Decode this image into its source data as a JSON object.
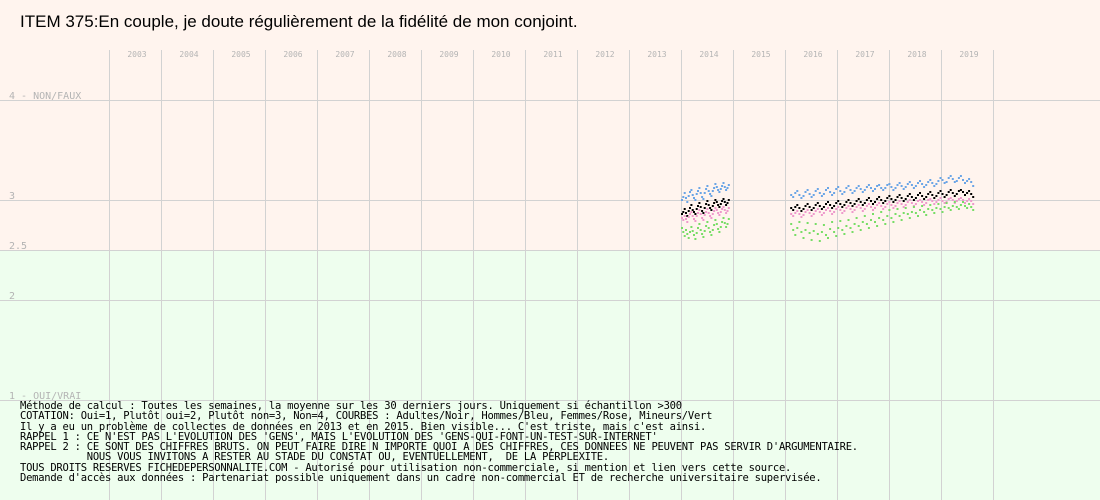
{
  "title": "ITEM 375:En couple, je doute régulièrement de la fidélité de mon conjoint.",
  "chart_data": {
    "type": "scatter",
    "title": "ITEM 375:En couple, je doute régulièrement de la fidélité de mon conjoint.",
    "ylim": [
      1,
      4.5
    ],
    "x_ticks": [
      "2003",
      "2004",
      "2005",
      "2006",
      "2007",
      "2008",
      "2009",
      "2010",
      "2011",
      "2012",
      "2013",
      "2014",
      "2015",
      "2016",
      "2017",
      "2018",
      "2019"
    ],
    "y_ticks": [
      {
        "value": 4,
        "label": "4 - NON/FAUX"
      },
      {
        "value": 3,
        "label": "3"
      },
      {
        "value": 2.5,
        "label": "2.5"
      },
      {
        "value": 2,
        "label": "2"
      },
      {
        "value": 1,
        "label": "1 - OUI/VRAI"
      }
    ],
    "grid": true,
    "colors": {
      "top_band": "#fff4ee",
      "bottom_band": "#eefeee",
      "grid": "#d2d2d2",
      "tick_text": "#b4b4b4",
      "adultes": "#000000",
      "hommes": "#6aa5e6",
      "femmes": "#ee99cc",
      "mineurs": "#77dd66"
    },
    "series": [
      {
        "name": "Adultes",
        "color": "#000000",
        "segments": [
          {
            "x_start": 2014.0,
            "x_end": 2014.9,
            "values": [
              2.86,
              2.88,
              2.91,
              2.87,
              2.84,
              2.89,
              2.92,
              2.95,
              2.9,
              2.88,
              2.86,
              2.91,
              2.94,
              2.97,
              2.93,
              2.89,
              2.87,
              2.92,
              2.96,
              2.99,
              2.95,
              2.92,
              2.9,
              2.94,
              2.97,
              3.0,
              2.98,
              2.95,
              2.93,
              2.96,
              2.99,
              3.01,
              2.98,
              2.95,
              2.97,
              3.0
            ]
          },
          {
            "x_start": 2016.1,
            "x_end": 2019.6,
            "values": [
              2.92,
              2.9,
              2.93,
              2.95,
              2.92,
              2.89,
              2.91,
              2.94,
              2.96,
              2.93,
              2.9,
              2.92,
              2.95,
              2.97,
              2.94,
              2.91,
              2.93,
              2.96,
              2.98,
              2.95,
              2.92,
              2.94,
              2.97,
              2.99,
              2.96,
              2.93,
              2.95,
              2.98,
              3.0,
              2.97,
              2.94,
              2.96,
              2.99,
              3.01,
              2.98,
              2.95,
              2.97,
              3.0,
              3.02,
              2.99,
              2.96,
              2.98,
              3.01,
              3.03,
              3.0,
              2.97,
              2.99,
              3.02,
              3.04,
              3.01,
              2.98,
              3.0,
              3.03,
              3.05,
              3.02,
              2.99,
              3.01,
              3.04,
              3.06,
              3.03,
              3.0,
              3.02,
              3.05,
              3.07,
              3.04,
              3.01,
              3.03,
              3.06,
              3.08,
              3.05,
              3.02,
              3.04,
              3.07,
              3.09,
              3.06,
              3.03,
              3.05,
              3.08,
              3.1,
              3.07,
              3.04,
              3.06,
              3.09,
              3.1,
              3.08,
              3.05,
              3.07,
              3.09,
              3.06,
              3.03
            ]
          }
        ]
      },
      {
        "name": "Hommes",
        "color": "#6aa5e6",
        "segments": [
          {
            "x_start": 2014.0,
            "x_end": 2014.9,
            "values": [
              3.0,
              3.03,
              3.07,
              3.02,
              2.98,
              3.04,
              3.08,
              3.1,
              3.05,
              3.02,
              3.0,
              3.06,
              3.09,
              3.12,
              3.07,
              3.03,
              3.01,
              3.07,
              3.11,
              3.14,
              3.09,
              3.06,
              3.04,
              3.09,
              3.12,
              3.16,
              3.13,
              3.1,
              3.08,
              3.11,
              3.14,
              3.17,
              3.13,
              3.1,
              3.12,
              3.15
            ]
          },
          {
            "x_start": 2016.1,
            "x_end": 2019.6,
            "values": [
              3.05,
              3.03,
              3.07,
              3.09,
              3.05,
              3.02,
              3.04,
              3.08,
              3.1,
              3.06,
              3.03,
              3.05,
              3.09,
              3.11,
              3.07,
              3.04,
              3.06,
              3.1,
              3.12,
              3.08,
              3.05,
              3.07,
              3.11,
              3.13,
              3.09,
              3.06,
              3.08,
              3.12,
              3.14,
              3.1,
              3.07,
              3.09,
              3.12,
              3.14,
              3.11,
              3.08,
              3.1,
              3.13,
              3.15,
              3.12,
              3.09,
              3.11,
              3.14,
              3.15,
              3.12,
              3.1,
              3.12,
              3.15,
              3.16,
              3.13,
              3.1,
              3.12,
              3.15,
              3.17,
              3.14,
              3.11,
              3.13,
              3.16,
              3.18,
              3.15,
              3.12,
              3.14,
              3.17,
              3.19,
              3.16,
              3.13,
              3.15,
              3.18,
              3.2,
              3.17,
              3.14,
              3.16,
              3.19,
              3.22,
              3.2,
              3.17,
              3.18,
              3.22,
              3.24,
              3.21,
              3.18,
              3.19,
              3.22,
              3.24,
              3.2,
              3.17,
              3.19,
              3.21,
              3.18,
              3.14
            ]
          }
        ]
      },
      {
        "name": "Femmes",
        "color": "#ee99cc",
        "segments": [
          {
            "x_start": 2014.0,
            "x_end": 2014.9,
            "values": [
              2.82,
              2.8,
              2.84,
              2.81,
              2.78,
              2.83,
              2.86,
              2.88,
              2.84,
              2.81,
              2.79,
              2.84,
              2.87,
              2.9,
              2.86,
              2.82,
              2.8,
              2.85,
              2.88,
              2.91,
              2.87,
              2.84,
              2.82,
              2.86,
              2.89,
              2.92,
              2.9,
              2.87,
              2.85,
              2.88,
              2.91,
              2.93,
              2.9,
              2.87,
              2.89,
              2.92
            ]
          },
          {
            "x_start": 2016.1,
            "x_end": 2019.6,
            "values": [
              2.86,
              2.84,
              2.87,
              2.89,
              2.86,
              2.83,
              2.85,
              2.88,
              2.9,
              2.87,
              2.84,
              2.86,
              2.89,
              2.91,
              2.88,
              2.85,
              2.87,
              2.9,
              2.92,
              2.89,
              2.86,
              2.88,
              2.91,
              2.93,
              2.9,
              2.87,
              2.89,
              2.92,
              2.94,
              2.91,
              2.88,
              2.9,
              2.93,
              2.95,
              2.92,
              2.89,
              2.91,
              2.94,
              2.96,
              2.93,
              2.9,
              2.92,
              2.95,
              2.97,
              2.94,
              2.91,
              2.93,
              2.96,
              2.98,
              2.95,
              2.92,
              2.94,
              2.97,
              2.99,
              2.96,
              2.93,
              2.95,
              2.98,
              3.0,
              2.97,
              2.94,
              2.96,
              2.99,
              3.0,
              2.98,
              2.95,
              2.97,
              3.0,
              3.01,
              2.99,
              2.96,
              2.98,
              3.0,
              3.02,
              2.99,
              2.97,
              2.98,
              3.01,
              3.02,
              3.0,
              2.97,
              2.99,
              3.01,
              3.02,
              3.0,
              2.97,
              2.99,
              3.01,
              2.99,
              2.96
            ]
          }
        ]
      },
      {
        "name": "Mineurs",
        "color": "#77dd66",
        "segments": [
          {
            "x_start": 2014.0,
            "x_end": 2014.9,
            "values": [
              2.72,
              2.68,
              2.64,
              2.7,
              2.66,
              2.62,
              2.68,
              2.73,
              2.69,
              2.65,
              2.61,
              2.67,
              2.72,
              2.76,
              2.7,
              2.66,
              2.63,
              2.69,
              2.74,
              2.78,
              2.72,
              2.68,
              2.65,
              2.7,
              2.75,
              2.8,
              2.76,
              2.71,
              2.68,
              2.73,
              2.78,
              2.82,
              2.77,
              2.73,
              2.76,
              2.81
            ]
          },
          {
            "x_start": 2016.1,
            "x_end": 2019.6,
            "values": [
              2.76,
              2.7,
              2.65,
              2.72,
              2.78,
              2.68,
              2.62,
              2.7,
              2.77,
              2.67,
              2.6,
              2.69,
              2.76,
              2.66,
              2.59,
              2.68,
              2.75,
              2.65,
              2.62,
              2.71,
              2.78,
              2.68,
              2.64,
              2.72,
              2.79,
              2.7,
              2.66,
              2.74,
              2.8,
              2.72,
              2.68,
              2.76,
              2.82,
              2.74,
              2.7,
              2.78,
              2.84,
              2.76,
              2.72,
              2.8,
              2.86,
              2.78,
              2.74,
              2.82,
              2.88,
              2.8,
              2.76,
              2.84,
              2.9,
              2.82,
              2.78,
              2.86,
              2.91,
              2.84,
              2.8,
              2.87,
              2.92,
              2.86,
              2.82,
              2.88,
              2.93,
              2.87,
              2.84,
              2.9,
              2.94,
              2.88,
              2.85,
              2.91,
              2.95,
              2.9,
              2.87,
              2.92,
              2.96,
              2.91,
              2.88,
              2.93,
              2.97,
              2.92,
              2.9,
              2.94,
              2.98,
              2.93,
              2.91,
              2.95,
              2.98,
              2.94,
              2.92,
              2.96,
              2.93,
              2.9
            ]
          }
        ]
      }
    ]
  },
  "notes": [
    "Méthode de calcul : Toutes les semaines, la moyenne sur les 30 derniers jours. Uniquement si échantillon >300",
    "COTATION: Oui=1, Plutôt oui=2, Plutôt non=3, Non=4, COURBES : Adultes/Noir, Hommes/Bleu, Femmes/Rose, Mineurs/Vert",
    "Il y a eu un problème de collectes de données en 2013 et en 2015. Bien visible... C'est triste, mais c'est ainsi.",
    "RAPPEL 1 : CE N'EST PAS L'EVOLUTION DES 'GENS', MAIS L'EVOLUTION DES 'GENS-QUI-FONT-UN-TEST-SUR-INTERNET'",
    "RAPPEL 2 : CE SONT DES CHIFFRES BRUTS. ON PEUT FAIRE DIRE N IMPORTE QUOI A DES CHIFFRES, CES DONNEES NE PEUVENT PAS SERVIR D'ARGUMENTAIRE.",
    "           NOUS VOUS INVITONS A RESTER AU STADE DU CONSTAT OU, EVENTUELLEMENT,  DE LA PERPLEXITE.",
    "TOUS DROITS RESERVES FICHEDEPERSONNALITE.COM - Autorisé pour utilisation non-commerciale, si mention et lien vers cette source.",
    "Demande d'accès aux données : Partenariat possible uniquement dans un cadre non-commercial ET de recherche universitaire supervisée."
  ]
}
